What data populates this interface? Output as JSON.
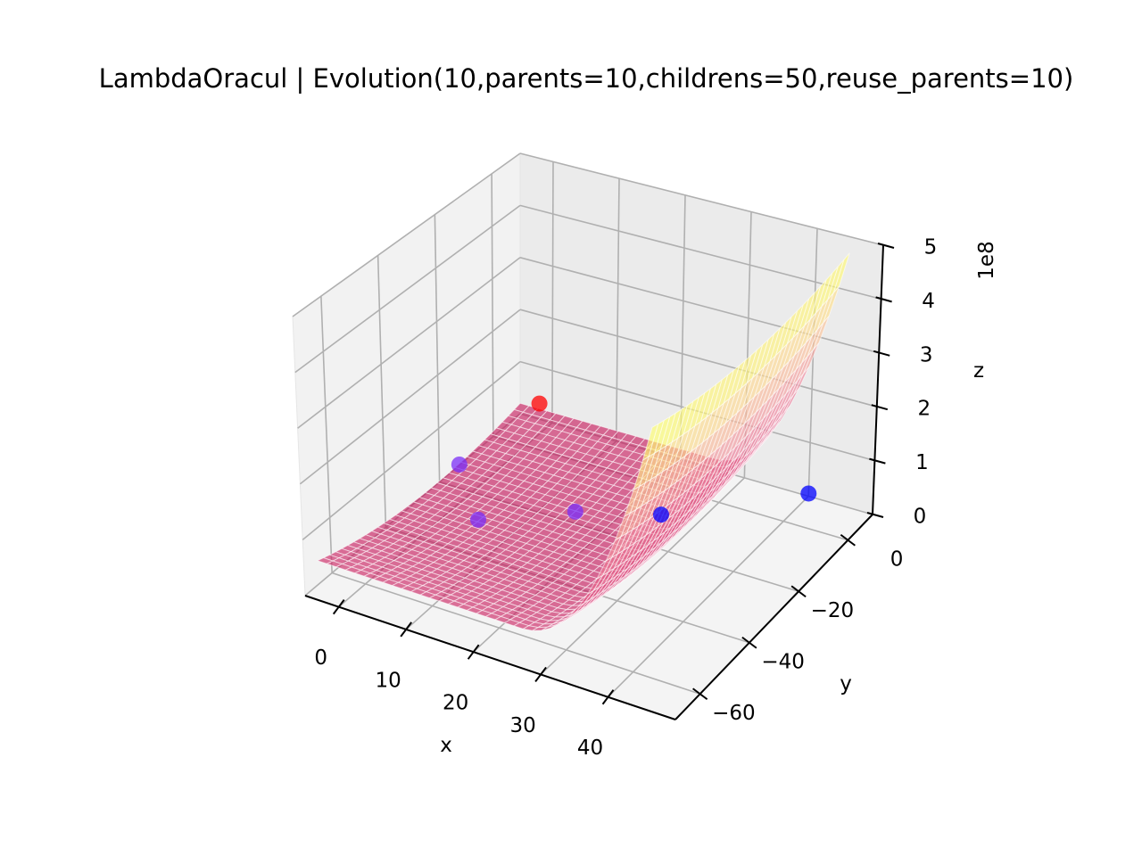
{
  "chart_data": {
    "type": "surface3d",
    "title": "LambdaOracul | Evolution(10,parents=10,childrens=50,reuse_parents=10)",
    "xlabel": "x",
    "ylabel": "y",
    "zlabel": "z",
    "z_offset_label": "1e8",
    "xlim": [
      -5,
      50
    ],
    "ylim": [
      -70,
      10
    ],
    "zlim": [
      0,
      5
    ],
    "x_ticks": [
      {
        "value": 0,
        "label": "0"
      },
      {
        "value": 10,
        "label": "10"
      },
      {
        "value": 20,
        "label": "20"
      },
      {
        "value": 30,
        "label": "30"
      },
      {
        "value": 40,
        "label": "40"
      }
    ],
    "y_ticks": [
      {
        "value": 0,
        "label": "0"
      },
      {
        "value": -20,
        "label": "−20"
      },
      {
        "value": -40,
        "label": "−40"
      },
      {
        "value": -60,
        "label": "−60"
      }
    ],
    "z_ticks": [
      {
        "value": 0,
        "label": "0"
      },
      {
        "value": 1,
        "label": "1"
      },
      {
        "value": 2,
        "label": "2"
      },
      {
        "value": 3,
        "label": "3"
      },
      {
        "value": 4,
        "label": "4"
      },
      {
        "value": 5,
        "label": "5"
      }
    ],
    "surface": {
      "x_range": [
        -5,
        45
      ],
      "y_range": [
        -65,
        10
      ],
      "z_unit": "1e8",
      "colormap": [
        "#c2185b",
        "#e0457a",
        "#f28ca0",
        "#ffd29a",
        "#ffff70"
      ],
      "alpha": 0.65
    },
    "points": [
      {
        "x": -2,
        "y": 10,
        "z": 0.3,
        "color": "#ff0000"
      },
      {
        "x": -4,
        "y": -15,
        "z": 0.15,
        "color": "#7b2ff7"
      },
      {
        "x": 5,
        "y": -30,
        "z": 0.1,
        "color": "#7b2ff7"
      },
      {
        "x": 15,
        "y": -18,
        "z": 0.1,
        "color": "#7b2ff7"
      },
      {
        "x": 25,
        "y": -10,
        "z": 0.05,
        "color": "#0000ff"
      },
      {
        "x": 40,
        "y": 10,
        "z": 0.05,
        "color": "#0000ff"
      }
    ],
    "grid": true
  }
}
